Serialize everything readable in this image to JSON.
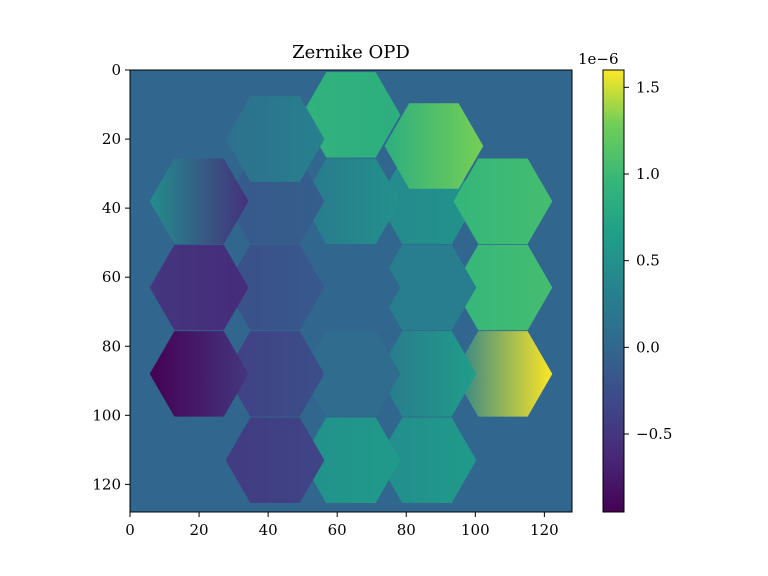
{
  "chart_data": {
    "type": "heatmap",
    "title": "Zernike OPD",
    "xlabel": "",
    "ylabel": "",
    "image_size": [
      128,
      128
    ],
    "xlim": [
      0,
      128
    ],
    "ylim": [
      128,
      0
    ],
    "xticks": [
      0,
      20,
      40,
      60,
      80,
      100,
      120
    ],
    "yticks": [
      0,
      20,
      40,
      60,
      80,
      100,
      120
    ],
    "background_value": 0.0,
    "colormap": "viridis",
    "colorbar": {
      "range": [
        -9.5e-07,
        1.6e-06
      ],
      "ticks": [
        -5e-07,
        0,
        5e-07,
        1e-06,
        1.5e-06
      ],
      "tick_labels": [
        "−0.5",
        "0.0",
        "0.5",
        "1.0",
        "1.5"
      ],
      "offset_label": "1e−6"
    },
    "segments": [
      {
        "center": [
          64,
          13
        ],
        "value_left": 9e-07,
        "value_right": 8.5e-07
      },
      {
        "center": [
          86,
          38
        ],
        "value_left": 4.2e-07,
        "value_right": 5.2e-07
      },
      {
        "center": [
          108,
          38
        ],
        "value_left": 9.5e-07,
        "value_right": 1.05e-06
      },
      {
        "center": [
          108,
          63
        ],
        "value_left": 9.5e-07,
        "value_right": 1.05e-06
      },
      {
        "center": [
          108,
          88
        ],
        "value_left": 3e-07,
        "value_right": 1.6e-06
      },
      {
        "center": [
          86,
          63
        ],
        "value_left": 2.8e-07,
        "value_right": 2.8e-07
      },
      {
        "center": [
          86,
          88
        ],
        "value_left": 2e-07,
        "value_right": 6.5e-07
      },
      {
        "center": [
          86,
          113
        ],
        "value_left": 4.5e-07,
        "value_right": 6e-07
      },
      {
        "center": [
          64,
          38
        ],
        "value_left": 2e-07,
        "value_right": 5e-07
      },
      {
        "center": [
          64,
          63
        ],
        "value_left": 0.0,
        "value_right": 0.0
      },
      {
        "center": [
          64,
          88
        ],
        "value_left": 6e-08,
        "value_right": 6e-08
      },
      {
        "center": [
          64,
          113
        ],
        "value_left": 5e-07,
        "value_right": 6e-07
      },
      {
        "center": [
          42,
          38
        ],
        "value_left": -1.5e-07,
        "value_right": -1e-07
      },
      {
        "center": [
          42,
          63
        ],
        "value_left": -2.5e-07,
        "value_right": -1.5e-07
      },
      {
        "center": [
          42,
          88
        ],
        "value_left": -4e-07,
        "value_right": -2.5e-07
      },
      {
        "center": [
          42,
          113
        ],
        "value_left": -4.5e-07,
        "value_right": -3.5e-07
      },
      {
        "center": [
          20,
          38
        ],
        "value_left": 4.5e-07,
        "value_right": -5.5e-07
      },
      {
        "center": [
          20,
          63
        ],
        "value_left": -5e-07,
        "value_right": -6e-07
      },
      {
        "center": [
          20,
          88
        ],
        "value_left": -9.5e-07,
        "value_right": -5e-07
      },
      {
        "center": [
          42,
          20
        ],
        "value_left": 1e-07,
        "value_right": 3e-07
      },
      {
        "center": [
          88,
          22
        ],
        "value_left": 8.5e-07,
        "value_right": 1.3e-06
      }
    ]
  }
}
